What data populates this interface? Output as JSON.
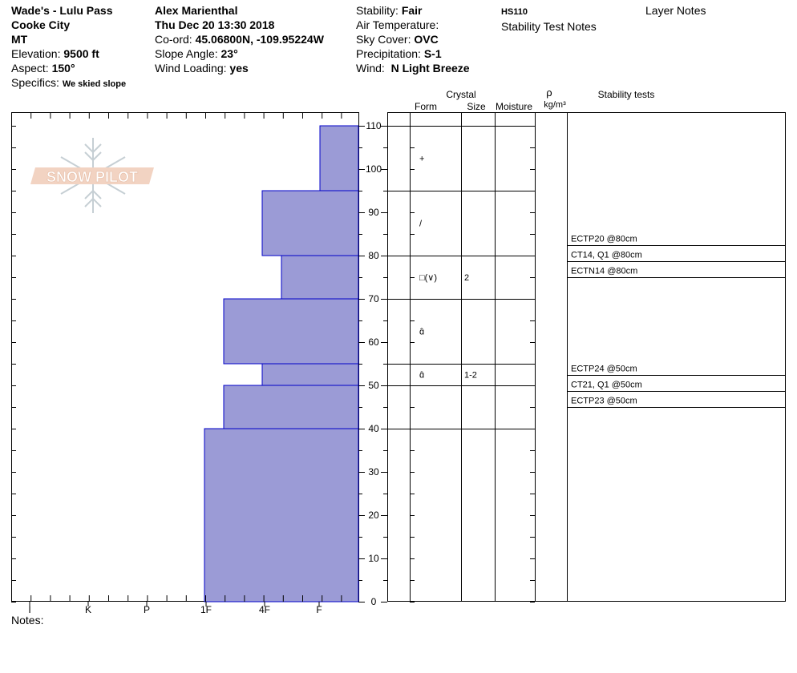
{
  "header": {
    "site_name": "Wade's - Lulu Pass",
    "location": "Cooke City",
    "state": "MT",
    "elevation_label": "Elevation:",
    "elevation_value": "9500 ft",
    "aspect_label": "Aspect:",
    "aspect_value": "150°",
    "specifics_label": "Specifics:",
    "specifics_value": "We skied slope",
    "observer": "Alex Marienthal",
    "datetime": "Thu Dec 20 13:30 2018",
    "coord_label": "Co-ord:",
    "coord_value": "45.06800N, -109.95224W",
    "slope_label": "Slope Angle:",
    "slope_value": "23°",
    "wind_loading_label": "Wind Loading:",
    "wind_loading_value": "yes",
    "stability_label": "Stability:",
    "stability_value": "Fair",
    "air_temp_label": "Air Temperature:",
    "sky_label": "Sky Cover:",
    "sky_value": "OVC",
    "precip_label": "Precipitation:",
    "precip_value": "S-1",
    "wind_label": "Wind:",
    "wind_value": "N Light Breeze",
    "hs": "HS110",
    "stability_test_notes": "Stability Test Notes",
    "layer_notes": "Layer Notes"
  },
  "logo": {
    "text": "SNOW PILOT"
  },
  "columns": {
    "crystal": "Crystal",
    "form": "Form",
    "size": "Size",
    "moisture": "Moisture",
    "rho": "ρ",
    "density_unit": "kg/m³",
    "stability_tests": "Stability tests"
  },
  "notes_label": "Notes:",
  "colors": {
    "bar_fill": "#9b9bd6",
    "bar_stroke": "#0000c8"
  },
  "chart_data": {
    "type": "bar",
    "orientation": "horizontal-step",
    "title": "",
    "hardness_ticks": [
      "I",
      "K",
      "P",
      "1F",
      "4F",
      "F"
    ],
    "depth_ticks": [
      0,
      10,
      20,
      30,
      40,
      50,
      60,
      70,
      80,
      90,
      100,
      110
    ],
    "ylim": [
      0,
      110
    ],
    "xlim": [
      "F-",
      "I"
    ],
    "layers": [
      {
        "top": 110,
        "bottom": 95,
        "hardness": "F+",
        "form": "+",
        "size": ""
      },
      {
        "top": 95,
        "bottom": 80,
        "hardness": "4F",
        "form": "/",
        "size": ""
      },
      {
        "top": 80,
        "bottom": 70,
        "hardness": "4F-",
        "form": "□(∨)",
        "size": "2"
      },
      {
        "top": 70,
        "bottom": 55,
        "hardness": "1F+",
        "form": "ɑ̂",
        "size": ""
      },
      {
        "top": 55,
        "bottom": 50,
        "hardness": "4F",
        "form": "ɑ̂",
        "size": "1-2"
      },
      {
        "top": 50,
        "bottom": 40,
        "hardness": "1F+",
        "form": "",
        "size": ""
      },
      {
        "top": 40,
        "bottom": 0,
        "hardness": "1F",
        "form": "",
        "size": ""
      }
    ],
    "stability_tests": [
      {
        "label": "ECTP20 @80cm",
        "depth": 80
      },
      {
        "label": "CT14, Q1 @80cm",
        "depth": 80
      },
      {
        "label": "ECTN14 @80cm",
        "depth": 80
      },
      {
        "label": "ECTP24 @50cm",
        "depth": 50
      },
      {
        "label": "CT21, Q1 @50cm",
        "depth": 50
      },
      {
        "label": "ECTP23 @50cm",
        "depth": 50
      }
    ]
  }
}
